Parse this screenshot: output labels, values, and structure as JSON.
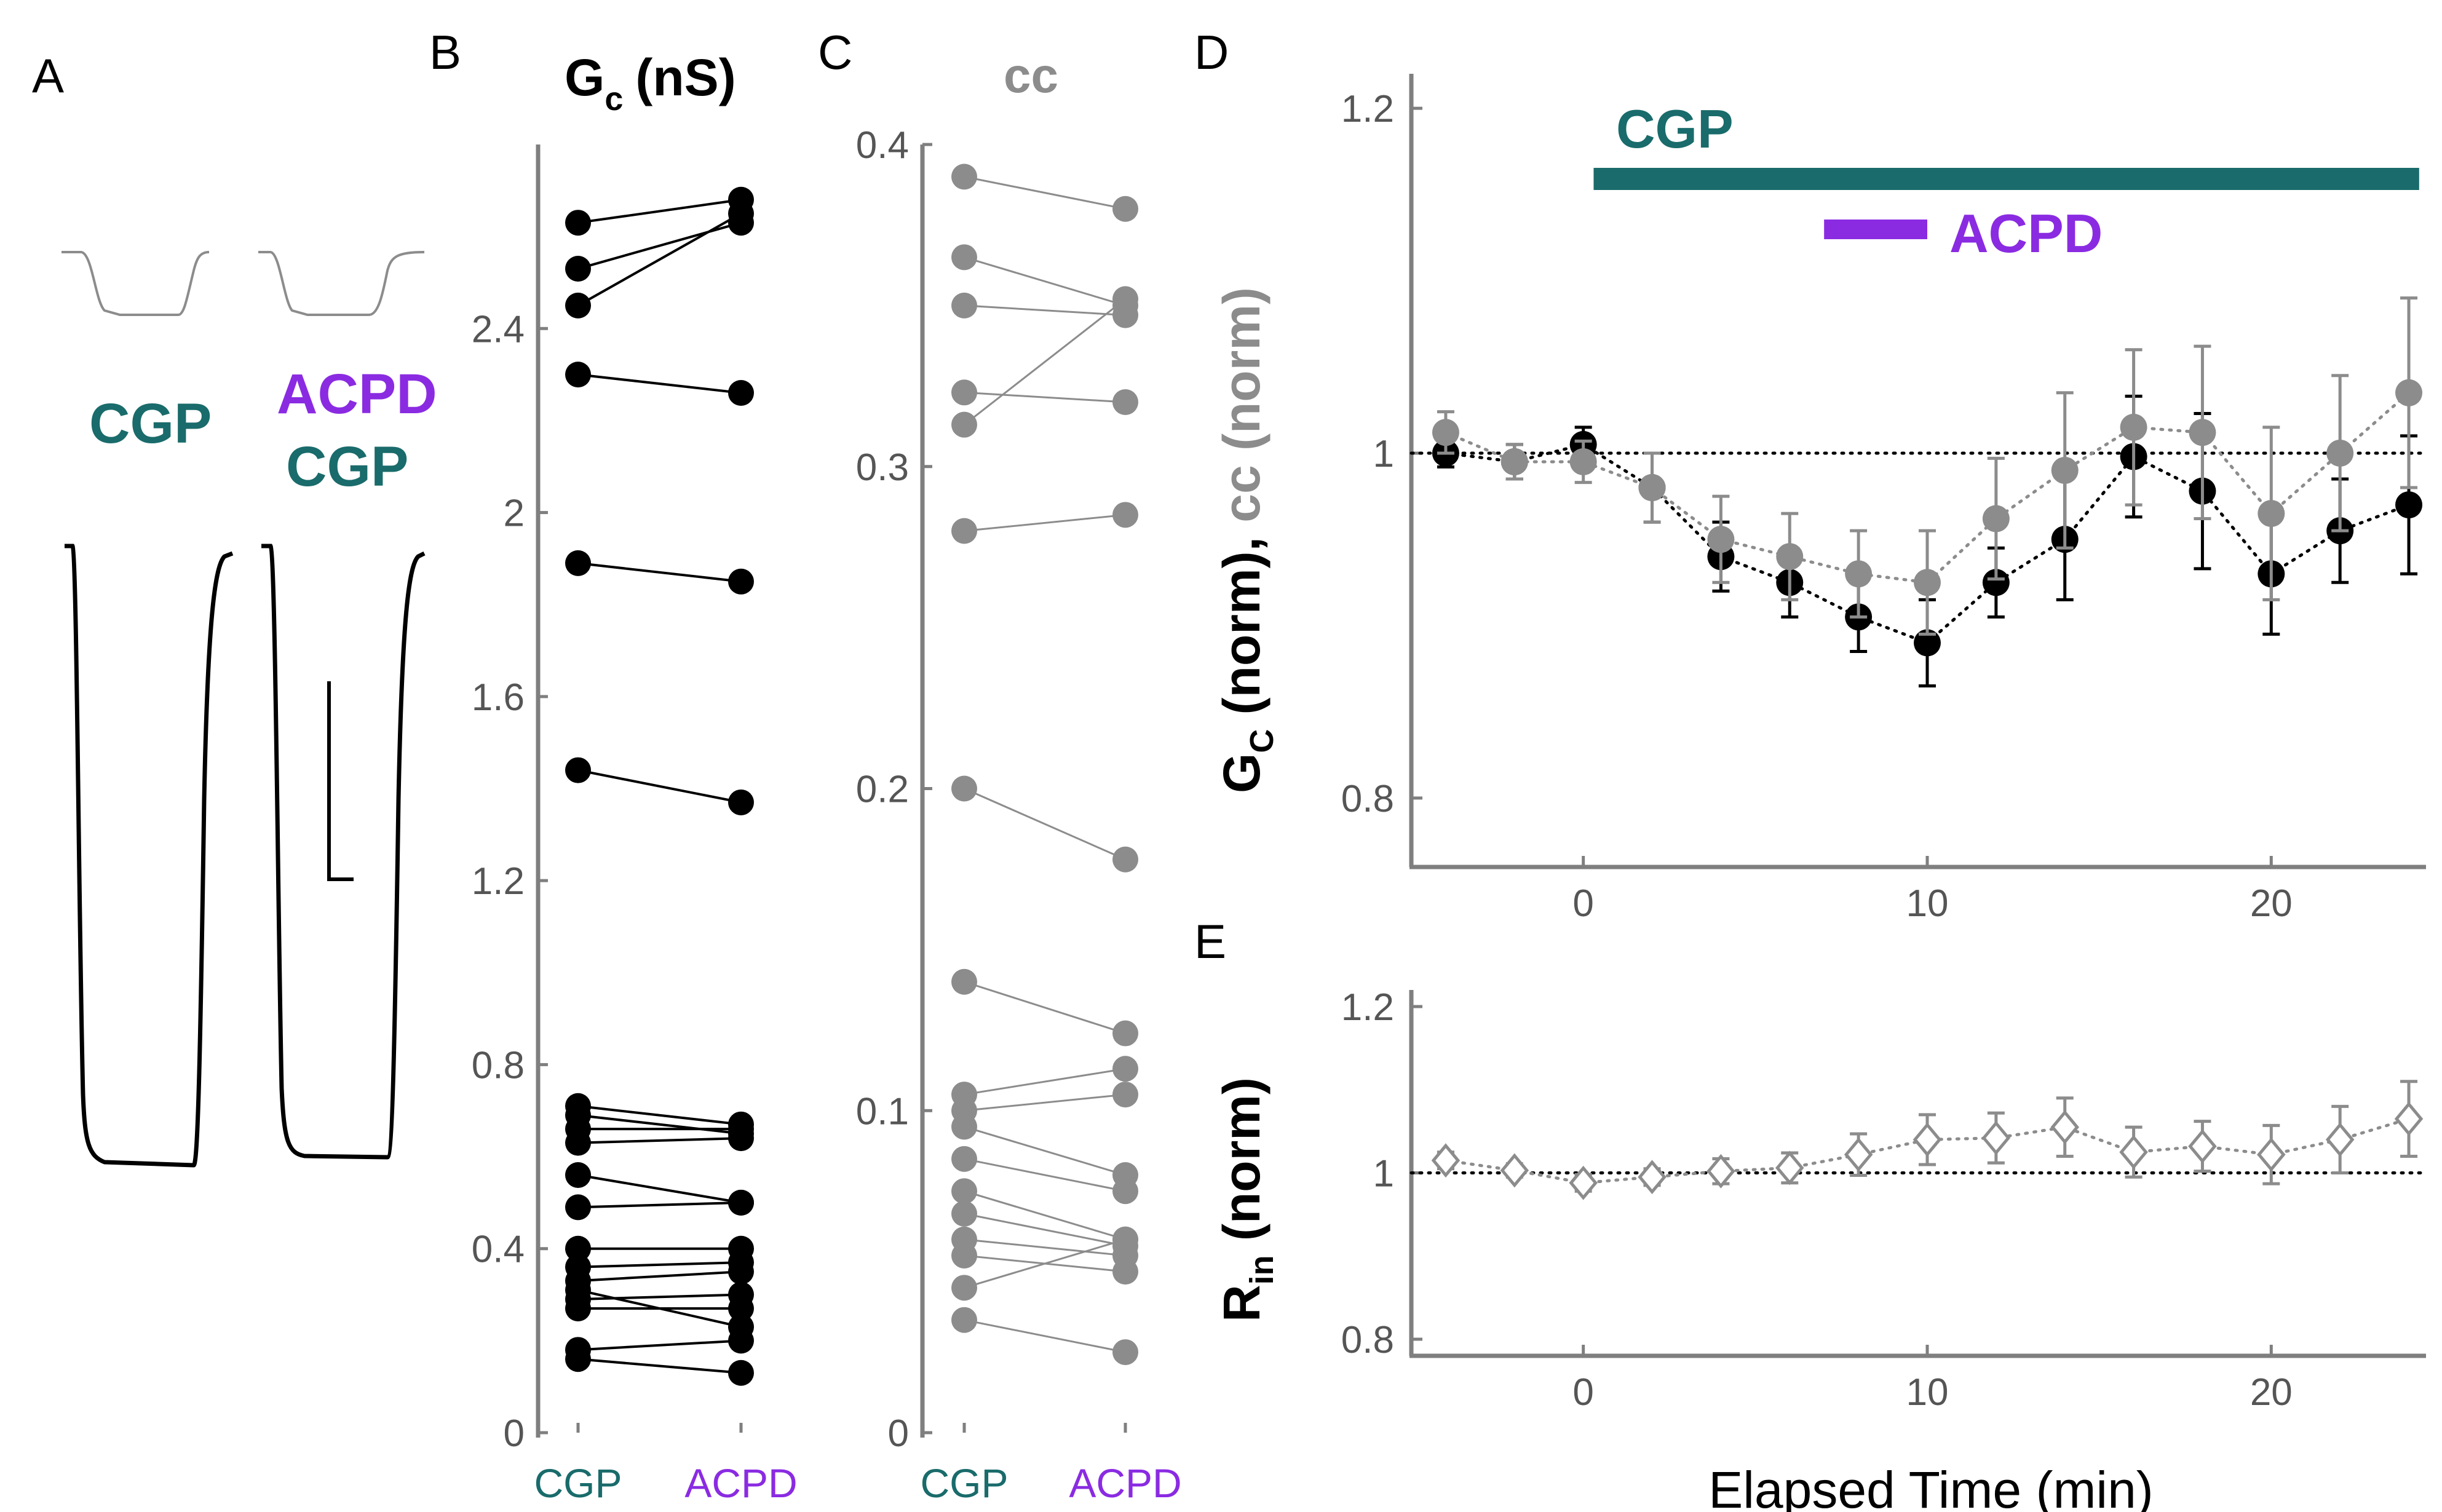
{
  "colors": {
    "cgp": "#1a6b6b",
    "acpd": "#8a2be2",
    "black": "#000000",
    "gray": "#8c8c8c",
    "axis": "#7f7f7f",
    "tick": "#555555"
  },
  "panels": {
    "a": {
      "letter": "A",
      "label_cgp": "CGP",
      "label_acpd": "ACPD",
      "label_cgp2": "CGP"
    },
    "b": {
      "letter": "B",
      "title_main": "G",
      "title_sub": "c",
      "title_unit": "(nS)"
    },
    "c": {
      "letter": "C",
      "title": "cc"
    },
    "d": {
      "letter": "D",
      "bar_cgp": "CGP",
      "bar_acpd": "ACPD",
      "ylabel_g": "G",
      "ylabel_sub": "C",
      "ylabel_norm": " (norm), ",
      "ylabel_cc": "cc (norm)"
    },
    "e": {
      "letter": "E",
      "ylabel_r": "R",
      "ylabel_sub": "in",
      "ylabel_norm": " (norm)",
      "xlabel": "Elapsed Time (min)"
    }
  },
  "chart_data": [
    {
      "id": "B",
      "type": "paired-line",
      "title": "Gc (nS)",
      "categories": [
        "CGP",
        "ACPD"
      ],
      "ylim": [
        0,
        2.8
      ],
      "yticks": [
        "0",
        "0.4",
        "0.8",
        "1.2",
        "1.6",
        "2",
        "2.4"
      ],
      "ytick_values": [
        0,
        0.4,
        0.8,
        1.2,
        1.6,
        2,
        2.4
      ],
      "pairs": [
        [
          2.63,
          2.68
        ],
        [
          2.53,
          2.63
        ],
        [
          2.45,
          2.65
        ],
        [
          2.3,
          2.26
        ],
        [
          1.89,
          1.85
        ],
        [
          1.44,
          1.37
        ],
        [
          0.71,
          0.67
        ],
        [
          0.69,
          0.65
        ],
        [
          0.66,
          0.66
        ],
        [
          0.63,
          0.64
        ],
        [
          0.56,
          0.5
        ],
        [
          0.49,
          0.5
        ],
        [
          0.4,
          0.4
        ],
        [
          0.36,
          0.37
        ],
        [
          0.33,
          0.35
        ],
        [
          0.31,
          0.23
        ],
        [
          0.29,
          0.3
        ],
        [
          0.27,
          0.27
        ],
        [
          0.18,
          0.2
        ],
        [
          0.16,
          0.13
        ]
      ]
    },
    {
      "id": "C",
      "type": "paired-line",
      "title": "cc",
      "categories": [
        "CGP",
        "ACPD"
      ],
      "ylim": [
        0,
        0.4
      ],
      "yticks": [
        "0",
        "0.1",
        "0.2",
        "0.3",
        "0.4"
      ],
      "ytick_values": [
        0,
        0.1,
        0.2,
        0.3,
        0.4
      ],
      "pairs": [
        [
          0.39,
          0.38
        ],
        [
          0.365,
          0.35
        ],
        [
          0.35,
          0.347
        ],
        [
          0.323,
          0.32
        ],
        [
          0.313,
          0.352
        ],
        [
          0.28,
          0.285
        ],
        [
          0.2,
          0.178
        ],
        [
          0.14,
          0.124
        ],
        [
          0.105,
          0.113
        ],
        [
          0.1,
          0.105
        ],
        [
          0.095,
          0.08
        ],
        [
          0.085,
          0.075
        ],
        [
          0.075,
          0.06
        ],
        [
          0.068,
          0.058
        ],
        [
          0.06,
          0.055
        ],
        [
          0.055,
          0.05
        ],
        [
          0.045,
          0.06
        ],
        [
          0.035,
          0.025
        ]
      ]
    },
    {
      "id": "D",
      "type": "scatter-errorbar",
      "ylabel": "GC (norm), cc (norm)",
      "xlim": [
        -5,
        24.5
      ],
      "ylim": [
        0.76,
        1.22
      ],
      "xticks": [
        "0",
        "10",
        "20"
      ],
      "xtick_values": [
        0,
        10,
        20
      ],
      "yticks": [
        "0.8",
        "1",
        "1.2"
      ],
      "ytick_values": [
        0.8,
        1.0,
        1.2
      ],
      "reference_line": 1.0,
      "bars": [
        {
          "label": "CGP",
          "start": 0.3,
          "end": 24.3,
          "y": 1.15
        },
        {
          "label": "ACPD",
          "start": 7,
          "end": 10,
          "y": 1.12
        }
      ],
      "series": [
        {
          "name": "Gc",
          "color": "black",
          "x": [
            -4,
            -2,
            0,
            2,
            4,
            6,
            8,
            10,
            12,
            14,
            16,
            18,
            20,
            22,
            24
          ],
          "y": [
            1.0,
            0.995,
            1.005,
            0.98,
            0.94,
            0.925,
            0.905,
            0.89,
            0.925,
            0.95,
            0.998,
            0.978,
            0.93,
            0.955,
            0.97
          ],
          "err": [
            0.008,
            0.01,
            0.01,
            0.02,
            0.02,
            0.02,
            0.02,
            0.025,
            0.02,
            0.035,
            0.035,
            0.045,
            0.035,
            0.03,
            0.04
          ]
        },
        {
          "name": "cc",
          "color": "gray",
          "x": [
            -4,
            -2,
            0,
            2,
            4,
            6,
            8,
            10,
            12,
            14,
            16,
            18,
            20,
            22,
            24
          ],
          "y": [
            1.012,
            0.995,
            0.995,
            0.98,
            0.95,
            0.94,
            0.93,
            0.925,
            0.962,
            0.99,
            1.015,
            1.012,
            0.965,
            1.0,
            1.035
          ],
          "err": [
            0.012,
            0.01,
            0.012,
            0.02,
            0.025,
            0.025,
            0.025,
            0.03,
            0.035,
            0.045,
            0.045,
            0.05,
            0.05,
            0.045,
            0.055
          ]
        }
      ]
    },
    {
      "id": "E",
      "type": "scatter-errorbar",
      "ylabel": "Rin (norm)",
      "xlabel": "Elapsed Time (min)",
      "xlim": [
        -5,
        24.5
      ],
      "ylim": [
        0.78,
        1.22
      ],
      "xticks": [
        "0",
        "10",
        "20"
      ],
      "xtick_values": [
        0,
        10,
        20
      ],
      "yticks": [
        "0.8",
        "1",
        "1.2"
      ],
      "ytick_values": [
        0.8,
        1.0,
        1.2
      ],
      "reference_line": 1.0,
      "series": [
        {
          "name": "Rin",
          "marker": "open-diamond",
          "color": "gray",
          "x": [
            -4,
            -2,
            0,
            2,
            4,
            6,
            8,
            10,
            12,
            14,
            16,
            18,
            20,
            22,
            24
          ],
          "y": [
            1.015,
            1.003,
            0.988,
            0.995,
            1.002,
            1.006,
            1.022,
            1.04,
            1.042,
            1.055,
            1.025,
            1.032,
            1.022,
            1.04,
            1.065
          ],
          "err": [
            0.01,
            0.008,
            0.01,
            0.01,
            0.015,
            0.018,
            0.025,
            0.03,
            0.03,
            0.035,
            0.03,
            0.03,
            0.035,
            0.04,
            0.045
          ]
        }
      ]
    }
  ]
}
